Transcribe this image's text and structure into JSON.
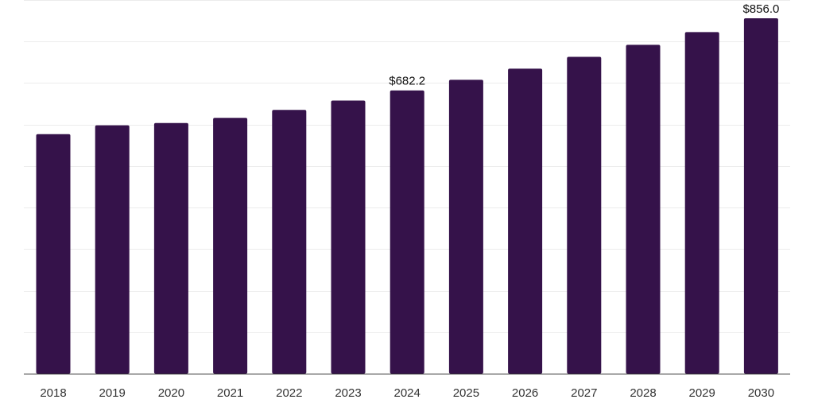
{
  "chart_data": {
    "type": "bar",
    "categories": [
      "2018",
      "2019",
      "2020",
      "2021",
      "2022",
      "2023",
      "2024",
      "2025",
      "2026",
      "2027",
      "2028",
      "2029",
      "2030"
    ],
    "values": [
      577.0,
      598.2,
      603.8,
      616.0,
      635.2,
      657.8,
      682.2,
      707.7,
      734.6,
      763.1,
      792.0,
      822.6,
      856.0
    ],
    "data_labels": [
      {
        "category": "2024",
        "text": "$682.2"
      },
      {
        "category": "2030",
        "text": "$856.0"
      }
    ],
    "ylim": [
      0,
      900
    ],
    "grid": true,
    "bar_color": "#35124a",
    "title": "",
    "xlabel": "",
    "ylabel": ""
  }
}
